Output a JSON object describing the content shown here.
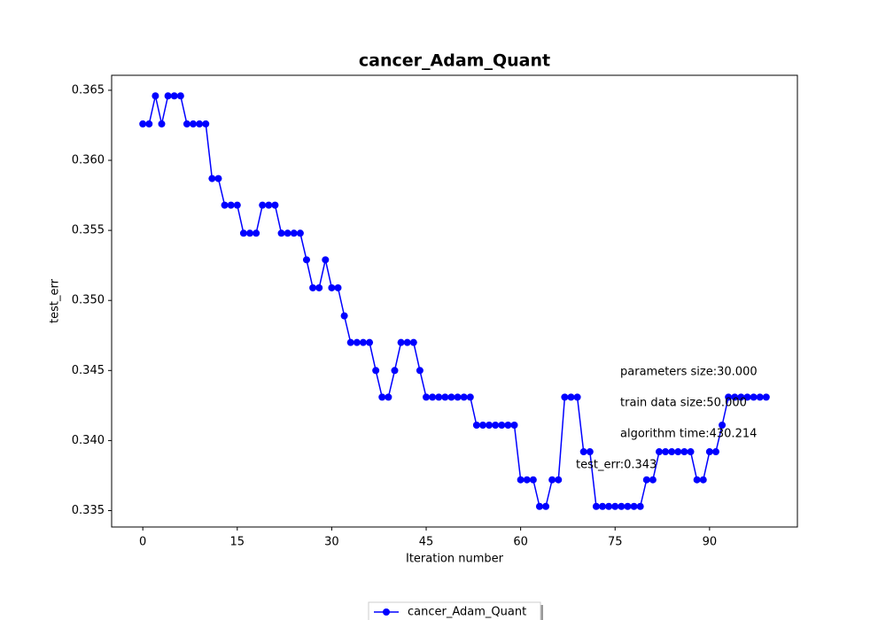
{
  "chart_data": {
    "type": "line",
    "title": "cancer_Adam_Quant",
    "xlabel": "Iteration number",
    "ylabel": "test_err",
    "x": [
      0,
      1,
      2,
      3,
      4,
      5,
      6,
      7,
      8,
      9,
      10,
      11,
      12,
      13,
      14,
      15,
      16,
      17,
      18,
      19,
      20,
      21,
      22,
      23,
      24,
      25,
      26,
      27,
      28,
      29,
      30,
      31,
      32,
      33,
      34,
      35,
      36,
      37,
      38,
      39,
      40,
      41,
      42,
      43,
      44,
      45,
      46,
      47,
      48,
      49,
      50,
      51,
      52,
      53,
      54,
      55,
      56,
      57,
      58,
      59,
      60,
      61,
      62,
      63,
      64,
      65,
      66,
      67,
      68,
      69,
      70,
      71,
      72,
      73,
      74,
      75,
      76,
      77,
      78,
      79,
      80,
      81,
      82,
      83,
      84,
      85,
      86,
      87,
      88,
      89,
      90,
      91,
      92,
      93,
      94,
      95,
      96,
      97,
      98,
      99
    ],
    "series": [
      {
        "name": "cancer_Adam_Quant",
        "color": "#0000ff",
        "values": [
          0.3626,
          0.3626,
          0.3646,
          0.3626,
          0.3646,
          0.3646,
          0.3646,
          0.3626,
          0.3626,
          0.3626,
          0.3626,
          0.3587,
          0.3587,
          0.3568,
          0.3568,
          0.3568,
          0.3548,
          0.3548,
          0.3548,
          0.3568,
          0.3568,
          0.3568,
          0.3548,
          0.3548,
          0.3548,
          0.3548,
          0.3529,
          0.3509,
          0.3509,
          0.3529,
          0.3509,
          0.3509,
          0.3489,
          0.347,
          0.347,
          0.347,
          0.347,
          0.345,
          0.3431,
          0.3431,
          0.345,
          0.347,
          0.347,
          0.347,
          0.345,
          0.3431,
          0.3431,
          0.3431,
          0.3431,
          0.3431,
          0.3431,
          0.3431,
          0.3431,
          0.3411,
          0.3411,
          0.3411,
          0.3411,
          0.3411,
          0.3411,
          0.3411,
          0.3372,
          0.3372,
          0.3372,
          0.3353,
          0.3353,
          0.3372,
          0.3372,
          0.3431,
          0.3431,
          0.3431,
          0.3392,
          0.3392,
          0.3353,
          0.3353,
          0.3353,
          0.3353,
          0.3353,
          0.3353,
          0.3353,
          0.3353,
          0.3372,
          0.3372,
          0.3392,
          0.3392,
          0.3392,
          0.3392,
          0.3392,
          0.3392,
          0.3372,
          0.3372,
          0.3392,
          0.3392,
          0.3411,
          0.3431,
          0.3431,
          0.3431,
          0.3431,
          0.3431,
          0.3431,
          0.3431
        ]
      }
    ],
    "xlim": [
      -4.95,
      103.95
    ],
    "ylim": [
      0.33383,
      0.36607
    ],
    "xticks": [
      0,
      15,
      30,
      45,
      60,
      75,
      90
    ],
    "yticks": [
      0.335,
      {
        "value": 0.34,
        "label": "0.340"
      },
      0.345,
      {
        "value": 0.35,
        "label": "0.350"
      },
      0.355,
      {
        "value": 0.36,
        "label": "0.360"
      },
      0.365
    ],
    "annotations": [
      "parameters size:30.000",
      "train data size:50.000",
      "algorithm time:430.214",
      "test_err:0.343"
    ],
    "legend": "lower center"
  }
}
